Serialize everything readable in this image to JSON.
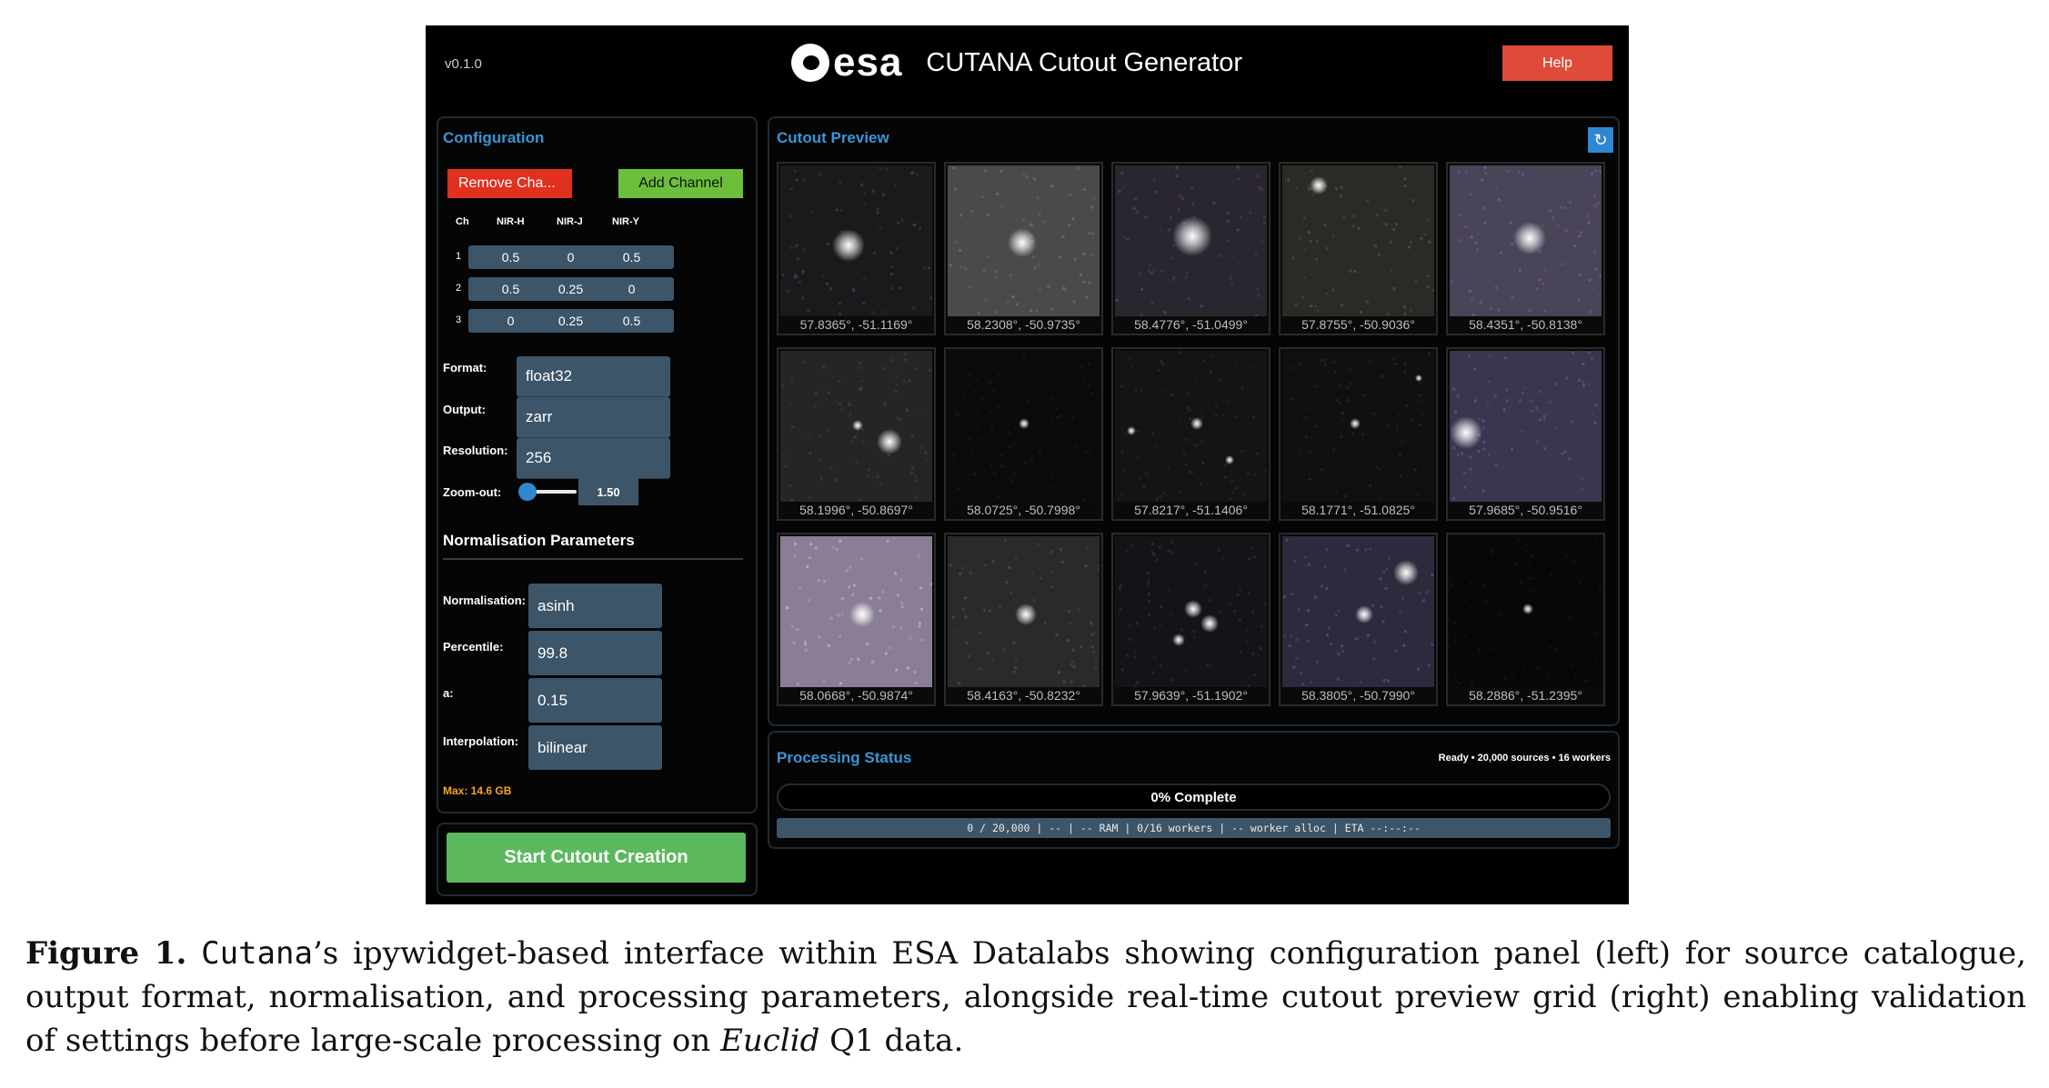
{
  "app": {
    "version": "v0.1.0",
    "logo_text": "esa",
    "title": "CUTANA Cutout Generator",
    "help_label": "Help"
  },
  "config": {
    "heading": "Configuration",
    "remove_label": "Remove Cha...",
    "add_label": "Add Channel",
    "channel_header": "Ch",
    "columns": [
      "NIR-H",
      "NIR-J",
      "NIR-Y"
    ],
    "rows": [
      {
        "ch": "1",
        "values": [
          "0.5",
          "0",
          "0.5"
        ]
      },
      {
        "ch": "2",
        "values": [
          "0.5",
          "0.25",
          "0"
        ]
      },
      {
        "ch": "3",
        "values": [
          "0",
          "0.25",
          "0.5"
        ]
      }
    ],
    "format_label": "Format:",
    "format_value": "float32",
    "output_label": "Output:",
    "output_value": "zarr",
    "resolution_label": "Resolution:",
    "resolution_value": "256",
    "zoom_label": "Zoom-out:",
    "zoom_value": "1.50",
    "zoom_slider_fraction": 0.0,
    "norm_heading": "Normalisation Parameters",
    "normalisation_label": "Normalisation:",
    "normalisation_value": "asinh",
    "percentile_label": "Percentile:",
    "percentile_value": "99.8",
    "a_label": "a:",
    "a_value": "0.15",
    "interpolation_label": "Interpolation:",
    "interpolation_value": "bilinear",
    "max_memory": "Max: 14.6 GB",
    "start_label": "Start Cutout Creation"
  },
  "preview": {
    "heading": "Cutout Preview",
    "refresh_icon": "refresh-icon",
    "tiles": [
      "57.8365°, -51.1169°",
      "58.2308°, -50.9735°",
      "58.4776°, -51.0499°",
      "57.8755°, -50.9036°",
      "58.4351°, -50.8138°",
      "58.1996°, -50.8697°",
      "58.0725°, -50.7998°",
      "57.8217°, -51.1406°",
      "58.1771°, -51.0825°",
      "57.9685°, -50.9516°",
      "58.0668°, -50.9874°",
      "58.4163°, -50.8232°",
      "57.9639°, -51.1902°",
      "58.3805°, -50.7990°",
      "58.2886°, -51.2395°"
    ]
  },
  "status": {
    "heading": "Processing Status",
    "meta": "Ready • 20,000 sources • 16 workers",
    "progress_text": "0% Complete",
    "progress_fraction": 0,
    "stats_line": "0 / 20,000 | -- | -- RAM | 0/16 workers | -- worker alloc | ETA --:--:--"
  },
  "caption": {
    "label": "Figure 1.",
    "tool": "Cutana",
    "text_1": "’s ipywidget-based interface within ESA Datalabs showing configuration panel (left) for source catalogue, output format, normalisation, and processing parameters, alongside real-time cutout preview grid (right) enabling validation of settings before large-scale processing on ",
    "euclid": "Euclid",
    "text_2": " Q1 data."
  },
  "colors": {
    "accent_blue": "#3a95d6",
    "help_red": "#e04a39",
    "remove_red": "#e0301e",
    "add_green": "#6cbf3b",
    "start_green": "#5cb85c",
    "field_slate": "#3d5568",
    "warning_orange": "#f5a623"
  }
}
